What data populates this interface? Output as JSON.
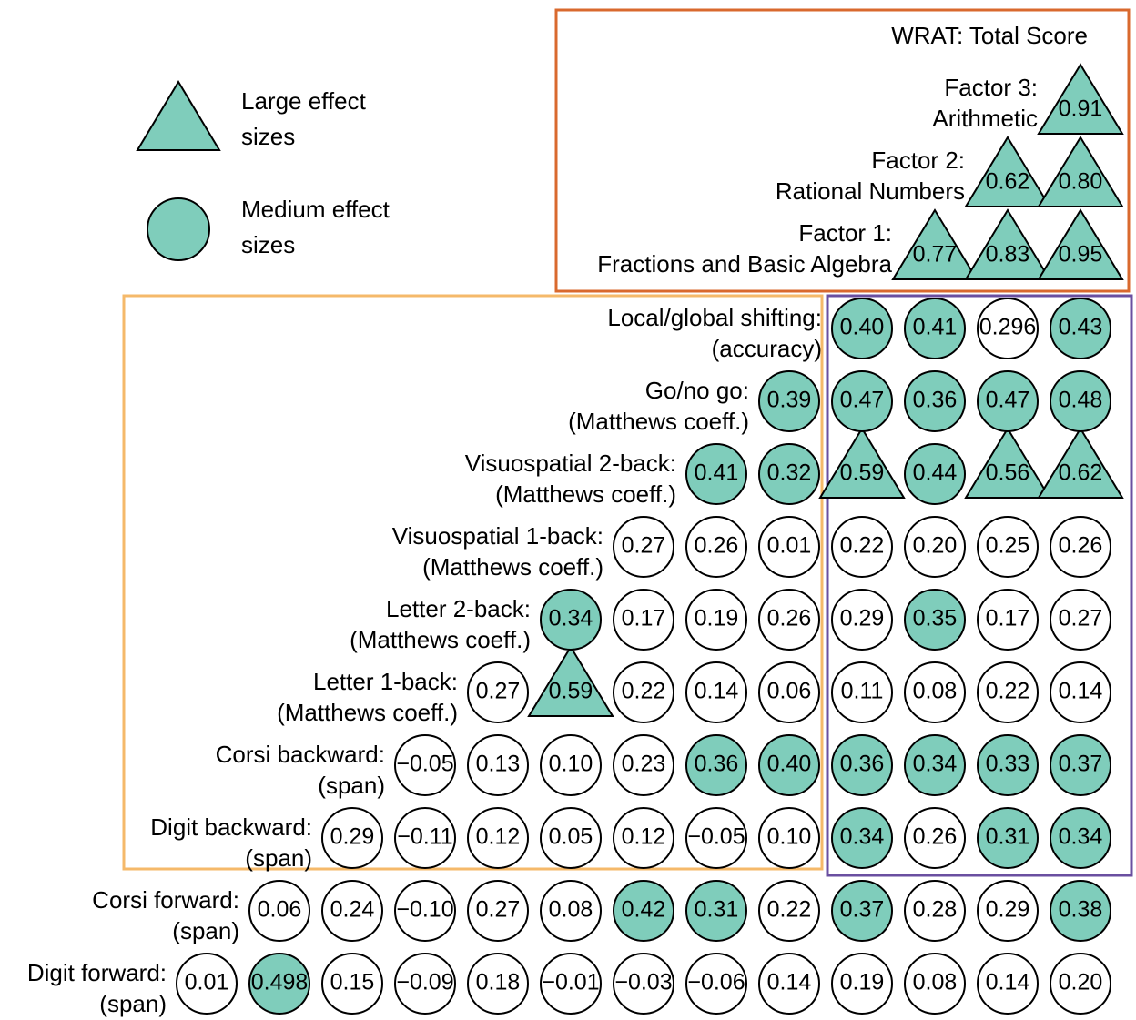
{
  "legend": {
    "large": [
      "Large effect",
      "sizes"
    ],
    "medium": [
      "Medium effect",
      "sizes"
    ]
  },
  "header": "WRAT: Total Score",
  "rows": [
    {
      "label": [
        "Digit forward:",
        "(span)"
      ],
      "cells": [
        {
          "text": "0.01",
          "effect": "none"
        },
        {
          "text": "0.498",
          "effect": "medium"
        },
        {
          "text": "0.15",
          "effect": "none"
        },
        {
          "text": "−0.09",
          "effect": "none"
        },
        {
          "text": "0.18",
          "effect": "none"
        },
        {
          "text": "−0.01",
          "effect": "none"
        },
        {
          "text": "−0.03",
          "effect": "none"
        },
        {
          "text": "−0.06",
          "effect": "none"
        },
        {
          "text": "0.14",
          "effect": "none"
        },
        {
          "text": "0.19",
          "effect": "none"
        },
        {
          "text": "0.08",
          "effect": "none"
        },
        {
          "text": "0.14",
          "effect": "none"
        },
        {
          "text": "0.20",
          "effect": "none"
        }
      ]
    },
    {
      "label": [
        "Corsi forward:",
        "(span)"
      ],
      "cells": [
        {
          "text": "0.06",
          "effect": "none"
        },
        {
          "text": "0.24",
          "effect": "none"
        },
        {
          "text": "−0.10",
          "effect": "none"
        },
        {
          "text": "0.27",
          "effect": "none"
        },
        {
          "text": "0.08",
          "effect": "none"
        },
        {
          "text": "0.42",
          "effect": "medium"
        },
        {
          "text": "0.31",
          "effect": "medium"
        },
        {
          "text": "0.22",
          "effect": "none"
        },
        {
          "text": "0.37",
          "effect": "medium"
        },
        {
          "text": "0.28",
          "effect": "none"
        },
        {
          "text": "0.29",
          "effect": "none"
        },
        {
          "text": "0.38",
          "effect": "medium"
        }
      ]
    },
    {
      "label": [
        "Digit backward:",
        "(span)"
      ],
      "cells": [
        {
          "text": "0.29",
          "effect": "none"
        },
        {
          "text": "−0.11",
          "effect": "none"
        },
        {
          "text": "0.12",
          "effect": "none"
        },
        {
          "text": "0.05",
          "effect": "none"
        },
        {
          "text": "0.12",
          "effect": "none"
        },
        {
          "text": "−0.05",
          "effect": "none"
        },
        {
          "text": "0.10",
          "effect": "none"
        },
        {
          "text": "0.34",
          "effect": "medium"
        },
        {
          "text": "0.26",
          "effect": "none"
        },
        {
          "text": "0.31",
          "effect": "medium"
        },
        {
          "text": "0.34",
          "effect": "medium"
        }
      ]
    },
    {
      "label": [
        "Corsi backward:",
        "(span)"
      ],
      "cells": [
        {
          "text": "−0.05",
          "effect": "none"
        },
        {
          "text": "0.13",
          "effect": "none"
        },
        {
          "text": "0.10",
          "effect": "none"
        },
        {
          "text": "0.23",
          "effect": "none"
        },
        {
          "text": "0.36",
          "effect": "medium"
        },
        {
          "text": "0.40",
          "effect": "medium"
        },
        {
          "text": "0.36",
          "effect": "medium"
        },
        {
          "text": "0.34",
          "effect": "medium"
        },
        {
          "text": "0.33",
          "effect": "medium"
        },
        {
          "text": "0.37",
          "effect": "medium"
        }
      ]
    },
    {
      "label": [
        "Letter 1-back:",
        "(Matthews coeff.)"
      ],
      "cells": [
        {
          "text": "0.27",
          "effect": "none"
        },
        {
          "text": "0.59",
          "effect": "large"
        },
        {
          "text": "0.22",
          "effect": "none"
        },
        {
          "text": "0.14",
          "effect": "none"
        },
        {
          "text": "0.06",
          "effect": "none"
        },
        {
          "text": "0.11",
          "effect": "none"
        },
        {
          "text": "0.08",
          "effect": "none"
        },
        {
          "text": "0.22",
          "effect": "none"
        },
        {
          "text": "0.14",
          "effect": "none"
        }
      ]
    },
    {
      "label": [
        "Letter 2-back:",
        "(Matthews coeff.)"
      ],
      "cells": [
        {
          "text": "0.34",
          "effect": "medium"
        },
        {
          "text": "0.17",
          "effect": "none"
        },
        {
          "text": "0.19",
          "effect": "none"
        },
        {
          "text": "0.26",
          "effect": "none"
        },
        {
          "text": "0.29",
          "effect": "none"
        },
        {
          "text": "0.35",
          "effect": "medium"
        },
        {
          "text": "0.17",
          "effect": "none"
        },
        {
          "text": "0.27",
          "effect": "none"
        }
      ]
    },
    {
      "label": [
        "Visuospatial 1-back:",
        "(Matthews coeff.)"
      ],
      "cells": [
        {
          "text": "0.27",
          "effect": "none"
        },
        {
          "text": "0.26",
          "effect": "none"
        },
        {
          "text": "0.01",
          "effect": "none"
        },
        {
          "text": "0.22",
          "effect": "none"
        },
        {
          "text": "0.20",
          "effect": "none"
        },
        {
          "text": "0.25",
          "effect": "none"
        },
        {
          "text": "0.26",
          "effect": "none"
        }
      ]
    },
    {
      "label": [
        "Visuospatial 2-back:",
        "(Matthews coeff.)"
      ],
      "cells": [
        {
          "text": "0.41",
          "effect": "medium"
        },
        {
          "text": "0.32",
          "effect": "medium"
        },
        {
          "text": "0.59",
          "effect": "large"
        },
        {
          "text": "0.44",
          "effect": "medium"
        },
        {
          "text": "0.56",
          "effect": "large"
        },
        {
          "text": "0.62",
          "effect": "large"
        }
      ]
    },
    {
      "label": [
        "Go/no go:",
        "(Matthews coeff.)"
      ],
      "cells": [
        {
          "text": "0.39",
          "effect": "medium"
        },
        {
          "text": "0.47",
          "effect": "medium"
        },
        {
          "text": "0.36",
          "effect": "medium"
        },
        {
          "text": "0.47",
          "effect": "medium"
        },
        {
          "text": "0.48",
          "effect": "medium"
        }
      ]
    },
    {
      "label": [
        "Local/global shifting:",
        "(accuracy)"
      ],
      "cells": [
        {
          "text": "0.40",
          "effect": "medium"
        },
        {
          "text": "0.41",
          "effect": "medium"
        },
        {
          "text": "0.296",
          "effect": "none"
        },
        {
          "text": "0.43",
          "effect": "medium"
        }
      ]
    },
    {
      "label": [
        "Factor 1:",
        "Fractions and Basic Algebra"
      ],
      "cells": [
        {
          "text": "0.77",
          "effect": "large"
        },
        {
          "text": "0.83",
          "effect": "large"
        },
        {
          "text": "0.95",
          "effect": "large"
        }
      ]
    },
    {
      "label": [
        "Factor 2:",
        "Rational Numbers"
      ],
      "cells": [
        {
          "text": "0.62",
          "effect": "large"
        },
        {
          "text": "0.80",
          "effect": "large"
        }
      ]
    },
    {
      "label": [
        "Factor 3:",
        "Arithmetic"
      ],
      "cells": [
        {
          "text": "0.91",
          "effect": "large"
        }
      ]
    }
  ]
}
